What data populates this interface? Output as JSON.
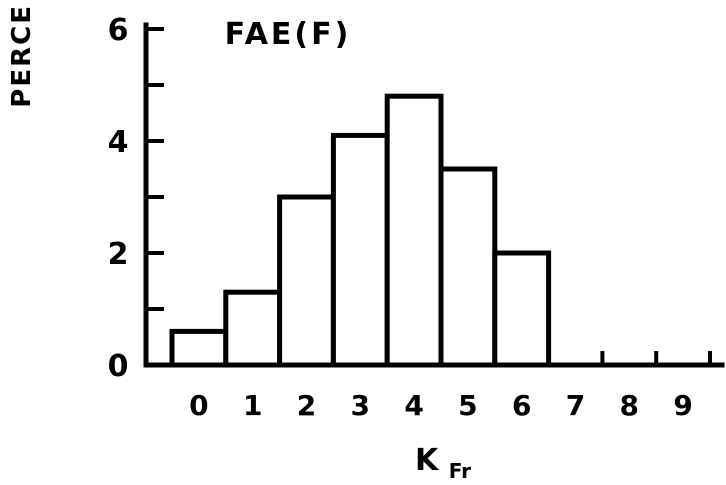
{
  "chart_data": {
    "type": "bar",
    "title": "FAE(F)",
    "ylabel": "PERCE",
    "xlabel": "K",
    "xlabel_subscript": "Fr",
    "categories": [
      "0",
      "1",
      "2",
      "3",
      "4",
      "5",
      "6",
      "7",
      "8",
      "9"
    ],
    "values": [
      0.6,
      1.3,
      3.0,
      4.1,
      4.8,
      3.5,
      2.0,
      0,
      0,
      0
    ],
    "y_ticks": [
      "0",
      "2",
      "4",
      "6"
    ],
    "ylim": [
      0,
      6
    ],
    "grid": false,
    "legend": "none",
    "colors": {
      "ink": "#000000",
      "bar_fill": "#ffffff",
      "background": "#ffffff"
    }
  }
}
